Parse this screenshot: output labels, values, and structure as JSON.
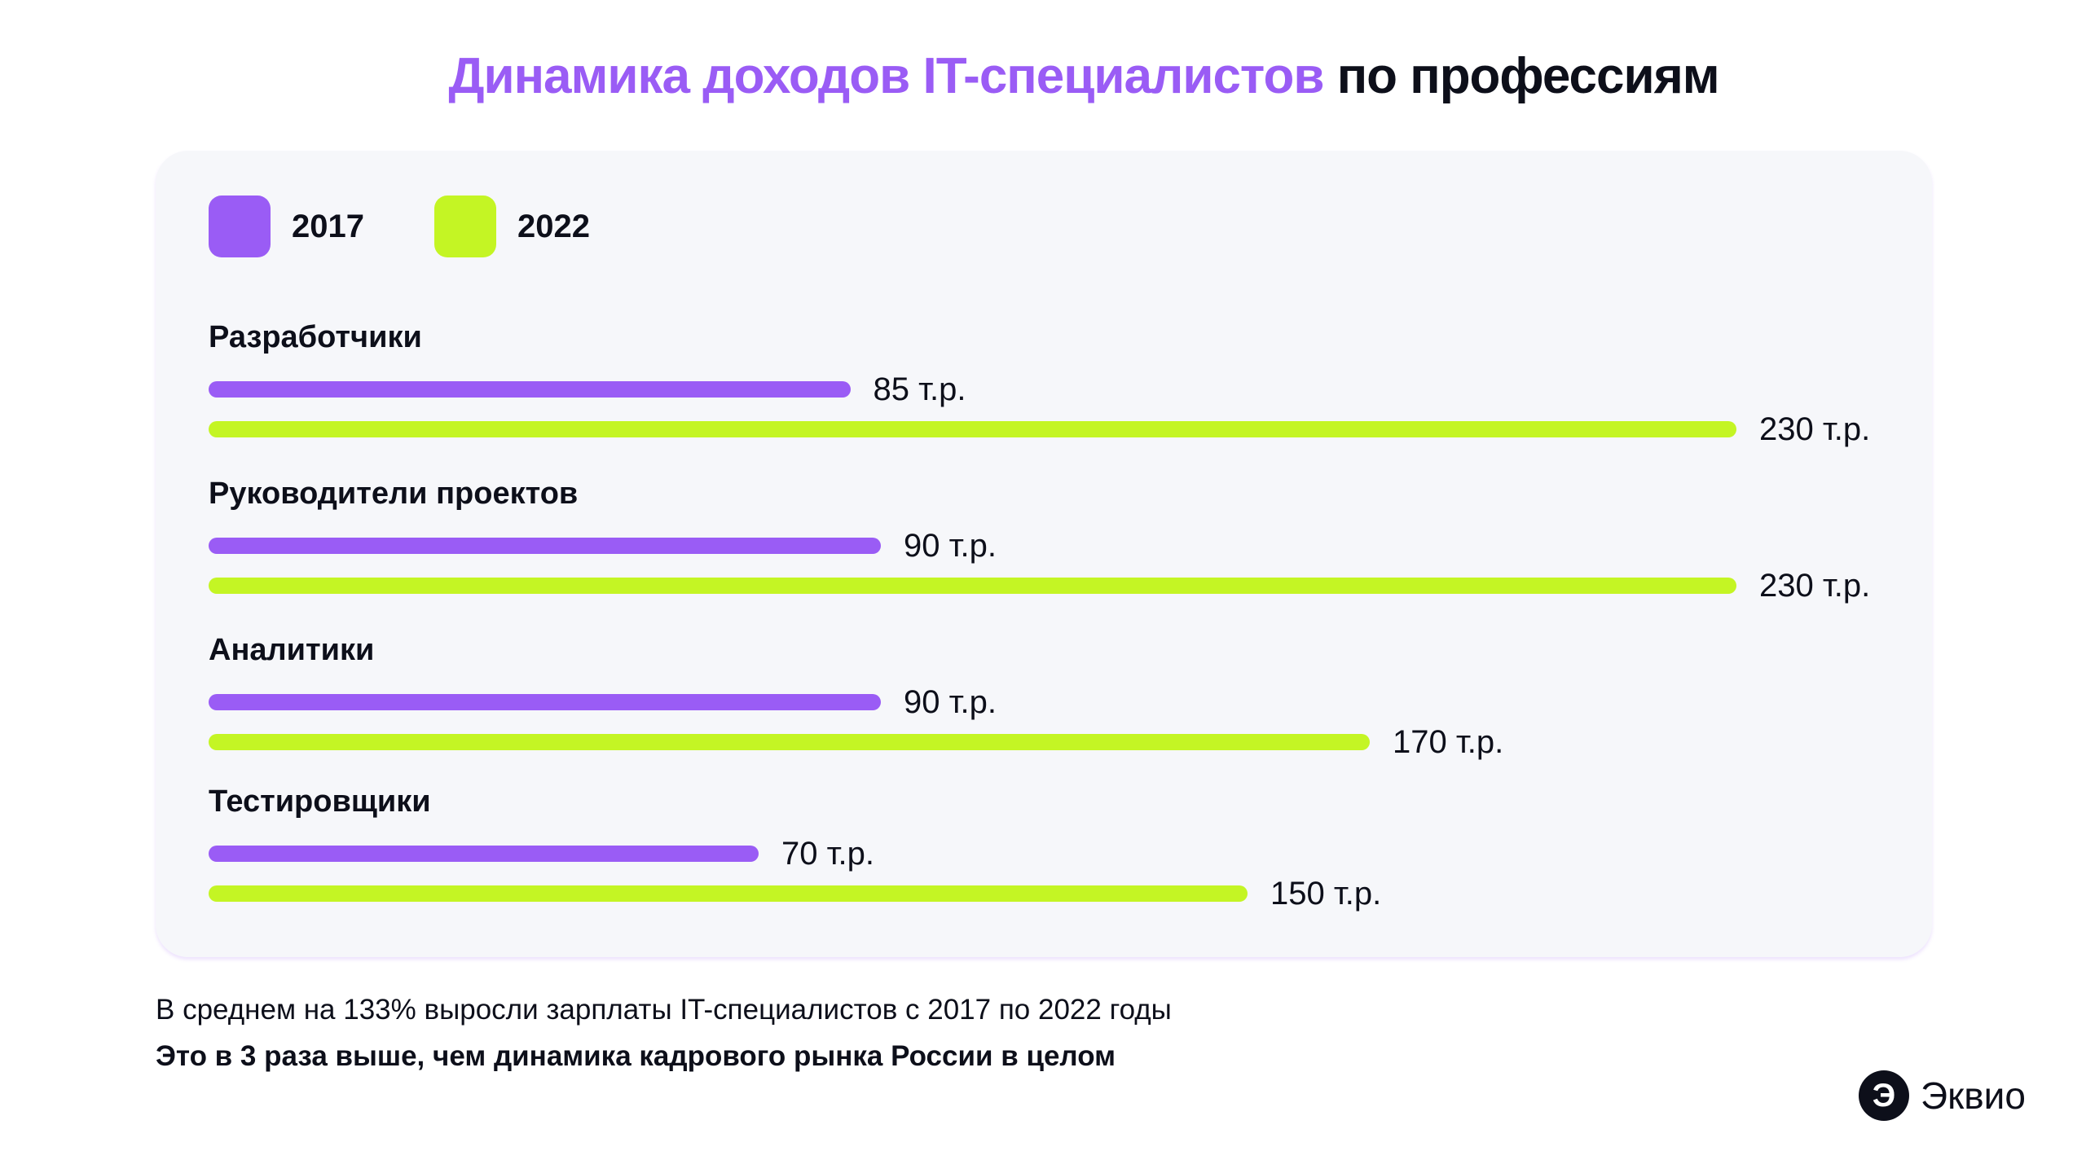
{
  "title": {
    "accent": "Динамика доходов IT-специалистов",
    "rest": " по профессиям"
  },
  "chart_data": {
    "type": "bar",
    "orientation": "horizontal",
    "title": "Динамика доходов IT-специалистов по профессиям",
    "categories": [
      "Разработчики",
      "Руководители проектов",
      "Аналитики",
      "Тестировщики"
    ],
    "series": [
      {
        "name": "2017",
        "color": "#9a5cf5",
        "values": [
          85,
          90,
          90,
          70
        ],
        "labels": [
          "85 т.р.",
          "90 т.р.",
          "90 т.р.",
          "70 т.р."
        ]
      },
      {
        "name": "2022",
        "color": "#c4f524",
        "values": [
          230,
          230,
          170,
          150
        ],
        "labels": [
          "230 т.р.",
          "230 т.р.",
          "170 т.р.",
          "150 т.р."
        ]
      }
    ],
    "unit": "т.р.",
    "legend": "top-left",
    "grid": false
  },
  "footer": {
    "line1": "В среднем на 133% выросли зарплаты IT-специалистов с 2017 по 2022 годы",
    "line2": "Это в 3 раза выше, чем динамика кадрового рынка России в целом"
  },
  "logo": {
    "text": "Эквио",
    "mark": "Э",
    "icon": "ekvio-logo-icon"
  }
}
